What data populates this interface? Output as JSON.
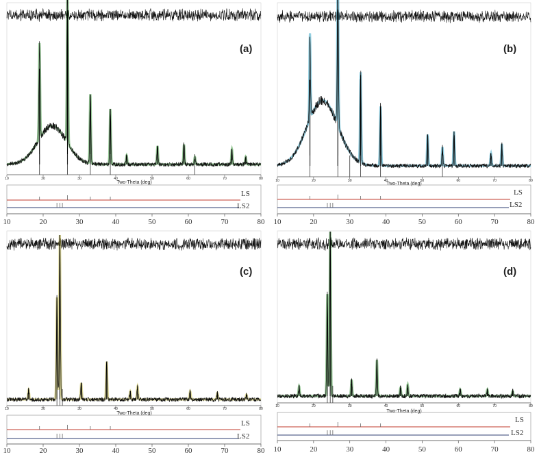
{
  "figure": {
    "panels": [
      {
        "id": "a",
        "label": "(a)",
        "xlabel": "Two-Theta (deg)",
        "fit_color": "#3f9a3f",
        "background": "amorphous-hump"
      },
      {
        "id": "b",
        "label": "(b)",
        "xlabel": "Two-Theta (deg)",
        "fit_color": "#3aa7c8",
        "background": "amorphous-hump"
      },
      {
        "id": "c",
        "label": "(c)",
        "xlabel": "Two-Theta (deg)",
        "fit_color": "#c8c04a",
        "background": "flat"
      },
      {
        "id": "d",
        "label": "(d)",
        "xlabel": "Two-Theta (deg)",
        "fit_color": "#3f9a3f",
        "background": "flat"
      }
    ],
    "reference_labels": [
      "LS",
      "LS2"
    ],
    "reference_colors": {
      "LS": "#c0392b",
      "LS2": "#2c3e70"
    }
  },
  "chart_data": [
    {
      "type": "line",
      "title": "(a)",
      "xlabel": "Two-Theta (deg)",
      "xlim": [
        10,
        80
      ],
      "xticks": [
        "10",
        "20",
        "30",
        "40",
        "50",
        "60",
        "70",
        "80"
      ],
      "peaks": [
        {
          "x": 19.0,
          "h": 0.62
        },
        {
          "x": 26.7,
          "h": 1.0
        },
        {
          "x": 33.0,
          "h": 0.45
        },
        {
          "x": 38.5,
          "h": 0.36
        },
        {
          "x": 43.0,
          "h": 0.06
        },
        {
          "x": 51.5,
          "h": 0.12
        },
        {
          "x": 58.8,
          "h": 0.13
        },
        {
          "x": 61.8,
          "h": 0.05
        },
        {
          "x": 72.0,
          "h": 0.1
        },
        {
          "x": 75.8,
          "h": 0.05
        }
      ],
      "hump": {
        "center": 22.5,
        "width": 5.5,
        "height": 0.25
      },
      "tick_marks": [
        19.0,
        26.7,
        33.0,
        38.5,
        61.8
      ]
    },
    {
      "type": "line",
      "title": "(b)",
      "xlabel": "Two-Theta (deg)",
      "xlim": [
        10,
        80
      ],
      "xticks": [
        "10",
        "20",
        "30",
        "40",
        "50",
        "60",
        "70",
        "80"
      ],
      "peaks": [
        {
          "x": 19.0,
          "h": 0.55
        },
        {
          "x": 26.7,
          "h": 1.0
        },
        {
          "x": 33.0,
          "h": 0.58
        },
        {
          "x": 38.5,
          "h": 0.38
        },
        {
          "x": 51.5,
          "h": 0.2
        },
        {
          "x": 55.6,
          "h": 0.12
        },
        {
          "x": 58.8,
          "h": 0.22
        },
        {
          "x": 69.0,
          "h": 0.08
        },
        {
          "x": 72.0,
          "h": 0.14
        }
      ],
      "hump": {
        "center": 22.5,
        "width": 6.0,
        "height": 0.42
      },
      "tick_marks": [
        19.0,
        26.7,
        30.0,
        33.0,
        38.5,
        55.6
      ]
    },
    {
      "type": "line",
      "title": "(c)",
      "xlabel": "Two-Theta (deg)",
      "xlim": [
        10,
        80
      ],
      "xticks": [
        "10",
        "20",
        "30",
        "40",
        "50",
        "60",
        "70",
        "80"
      ],
      "peaks": [
        {
          "x": 16.0,
          "h": 0.06
        },
        {
          "x": 23.8,
          "h": 0.62
        },
        {
          "x": 24.6,
          "h": 1.0
        },
        {
          "x": 30.5,
          "h": 0.1
        },
        {
          "x": 37.5,
          "h": 0.23
        },
        {
          "x": 44.0,
          "h": 0.05
        },
        {
          "x": 46.0,
          "h": 0.08
        },
        {
          "x": 60.5,
          "h": 0.05
        },
        {
          "x": 68.0,
          "h": 0.04
        },
        {
          "x": 76.0,
          "h": 0.03
        }
      ],
      "hump": {
        "center": 0,
        "width": 1,
        "height": 0
      },
      "tick_marks": [
        23.8,
        24.6,
        25.3
      ]
    },
    {
      "type": "line",
      "title": "(d)",
      "xlabel": "Two-Theta (deg)",
      "xlim": [
        10,
        80
      ],
      "xticks": [
        "10",
        "20",
        "30",
        "40",
        "50",
        "60",
        "70",
        "80"
      ],
      "peaks": [
        {
          "x": 16.0,
          "h": 0.06
        },
        {
          "x": 23.8,
          "h": 0.62
        },
        {
          "x": 24.6,
          "h": 1.0
        },
        {
          "x": 30.5,
          "h": 0.1
        },
        {
          "x": 37.5,
          "h": 0.22
        },
        {
          "x": 44.0,
          "h": 0.05
        },
        {
          "x": 46.0,
          "h": 0.07
        },
        {
          "x": 60.5,
          "h": 0.04
        },
        {
          "x": 68.0,
          "h": 0.04
        },
        {
          "x": 75.0,
          "h": 0.03
        }
      ],
      "hump": {
        "center": 0,
        "width": 1,
        "height": 0
      },
      "tick_marks": [
        23.8,
        24.6,
        25.3
      ]
    }
  ],
  "reference_patterns": {
    "xlim": [
      10,
      80
    ],
    "xticks": [
      "10",
      "20",
      "30",
      "40",
      "50",
      "60",
      "70",
      "80"
    ],
    "LS": [
      19.0,
      26.7,
      33.0,
      38.5
    ],
    "LS2": [
      23.8,
      24.6,
      25.3
    ]
  }
}
